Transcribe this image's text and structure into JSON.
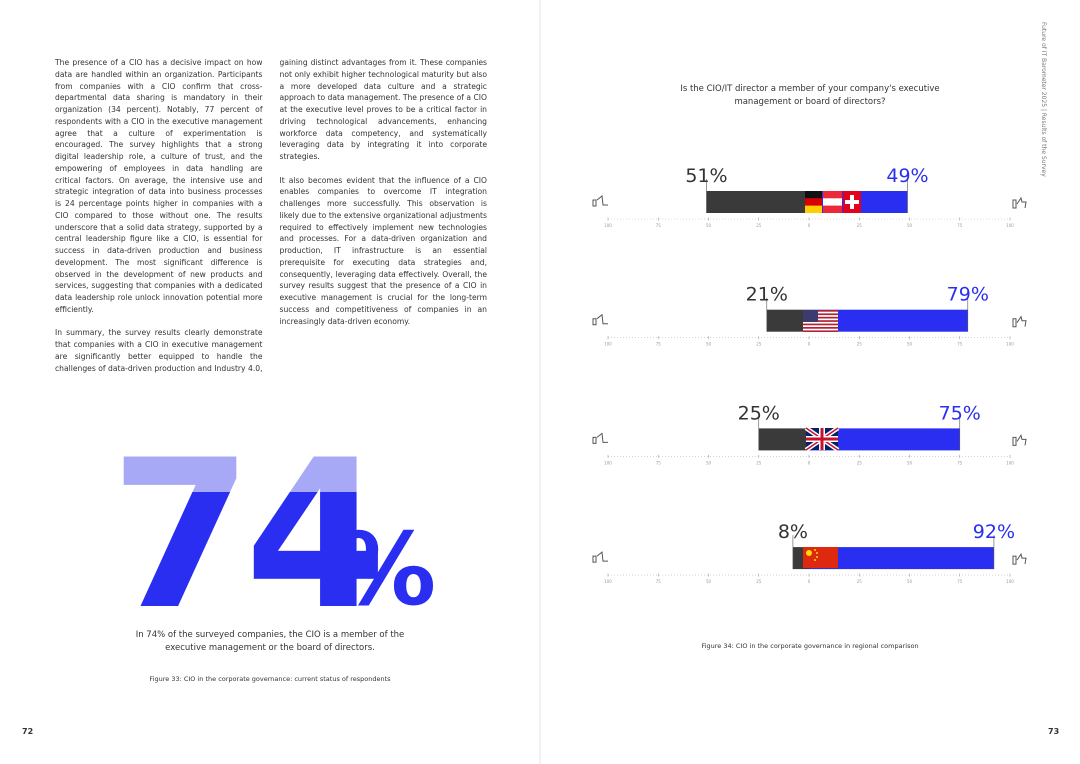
{
  "left_page": {
    "paragraphs": [
      "The presence of a CIO has a decisive impact on how data are handled within an organization. Participants from companies with a CIO confirm that cross-departmental data sharing is mandatory in their organization (34 percent). Notably, 77 percent of respondents with a CIO in the executive management agree that a culture of experimentation is encouraged. The survey highlights that a strong digital leadership role, a culture of trust, and the empowering of employees in data handling are critical factors. On average, the intensive use and strategic integration of data into business processes is 24 percentage points higher in companies with a CIO compared to those without one. The results underscore that a solid data strategy, supported by a central leadership figure like a CIO, is essential for success in data-driven production and business development. The most significant difference is observed in the development of new products and services, suggesting that companies with a dedicated data leadership role unlock innovation potential more efficiently.",
      "In summary, the survey results clearly demonstrate that companies with a CIO in executive management are significantly better equipped to handle the challenges of data-driven production and Industry 4.0, gaining distinct advantages from it. These companies not only exhibit higher technological maturity but also a more developed data culture and a strategic approach to data management. The presence of a CIO at the executive level proves to be a critical factor in driving technological advancements, enhancing workforce data competency, and systematically leveraging data by integrating it into corporate strategies.",
      "It also becomes evident that the influence of a CIO enables companies to overcome IT integration challenges more successfully. This observation is likely due to the extensive organizational adjustments required to effectively implement new technologies and processes. For a data-driven organization and production, IT infrastructure is an essential prerequisite for executing data strategies and, consequently, leveraging data effectively. Overall, the survey results suggest that the presence of a CIO in executive management is crucial for the long-term success and competitiveness of companies in an increasingly data-driven economy."
    ],
    "big_figure": "74",
    "big_unit": "%",
    "caption": "In 74% of the surveyed companies, the CIO is a member of the executive management or the board of directors.",
    "figure_caption": "Figure 33: CIO in the corporate governance: current status of respondents",
    "page_number": "72"
  },
  "right_page": {
    "running_head": "Future of IT Barometer 2025 | Results of the Survey",
    "figure_caption": "Figure 34: CIO in the corporate governance in regional comparison",
    "page_number": "73"
  },
  "chart_data": {
    "type": "diverging_bar",
    "title": "Is the CIO/IT director a member of your company's executive management or board of directors?",
    "series": [
      {
        "color": "#3a3a3a",
        "values": [
          51,
          21,
          25,
          8
        ],
        "value_labels": [
          "51%",
          "21%",
          "25%",
          "8%"
        ]
      },
      {
        "color": "#2a2ef0",
        "values": [
          49,
          79,
          75,
          92
        ],
        "value_labels": [
          "49%",
          "79%",
          "75%",
          "92%"
        ]
      }
    ],
    "xlim": [
      -100,
      100
    ],
    "xticks": [
      {
        "value": -100,
        "label": "100"
      },
      {
        "value": -75,
        "label": "75"
      },
      {
        "value": -50,
        "label": "50"
      },
      {
        "value": -25,
        "label": "25"
      },
      0,
      25,
      50,
      75,
      100
    ]
  }
}
